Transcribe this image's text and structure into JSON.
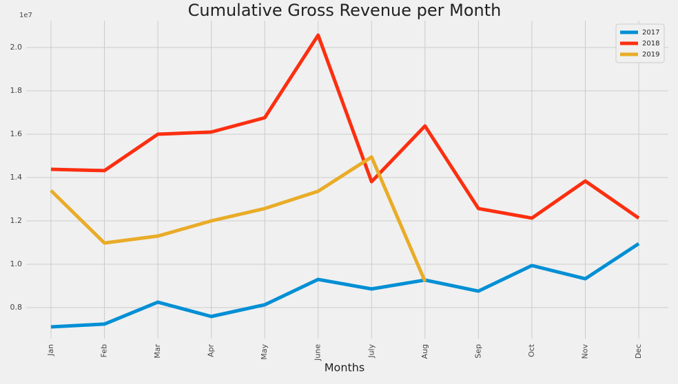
{
  "chart_data": {
    "type": "line",
    "title": "Cumulative Gross Revenue per Month",
    "x_label": "Months",
    "y_offset_label": "1e7",
    "categories": [
      "Jan",
      "Feb",
      "Mar",
      "Apr",
      "May",
      "June",
      "July",
      "Aug",
      "Sep",
      "Oct",
      "Nov",
      "Dec"
    ],
    "series": [
      {
        "name": "2017",
        "color": "#008fd5",
        "values": [
          0.711,
          0.724,
          0.825,
          0.759,
          0.813,
          0.93,
          0.886,
          0.927,
          0.876,
          0.994,
          0.933,
          1.095
        ]
      },
      {
        "name": "2018",
        "color": "#fc2f10",
        "values": [
          1.438,
          1.432,
          1.6,
          1.61,
          1.676,
          2.057,
          1.381,
          1.638,
          1.257,
          1.213,
          1.384,
          1.213
        ]
      },
      {
        "name": "2019",
        "color": "#e9ac28",
        "values": [
          1.34,
          1.098,
          1.13,
          1.2,
          1.257,
          1.337,
          1.495,
          0.921,
          null,
          null,
          null,
          null
        ]
      }
    ],
    "ylim": [
      0.657,
      2.124
    ],
    "yticks": [
      0.8,
      {
        "value": 1,
        "label": "1.0"
      },
      1.2,
      1.4,
      1.6,
      1.8,
      {
        "value": 2,
        "label": "2.0"
      }
    ],
    "grid": true,
    "legend": "upper right"
  }
}
